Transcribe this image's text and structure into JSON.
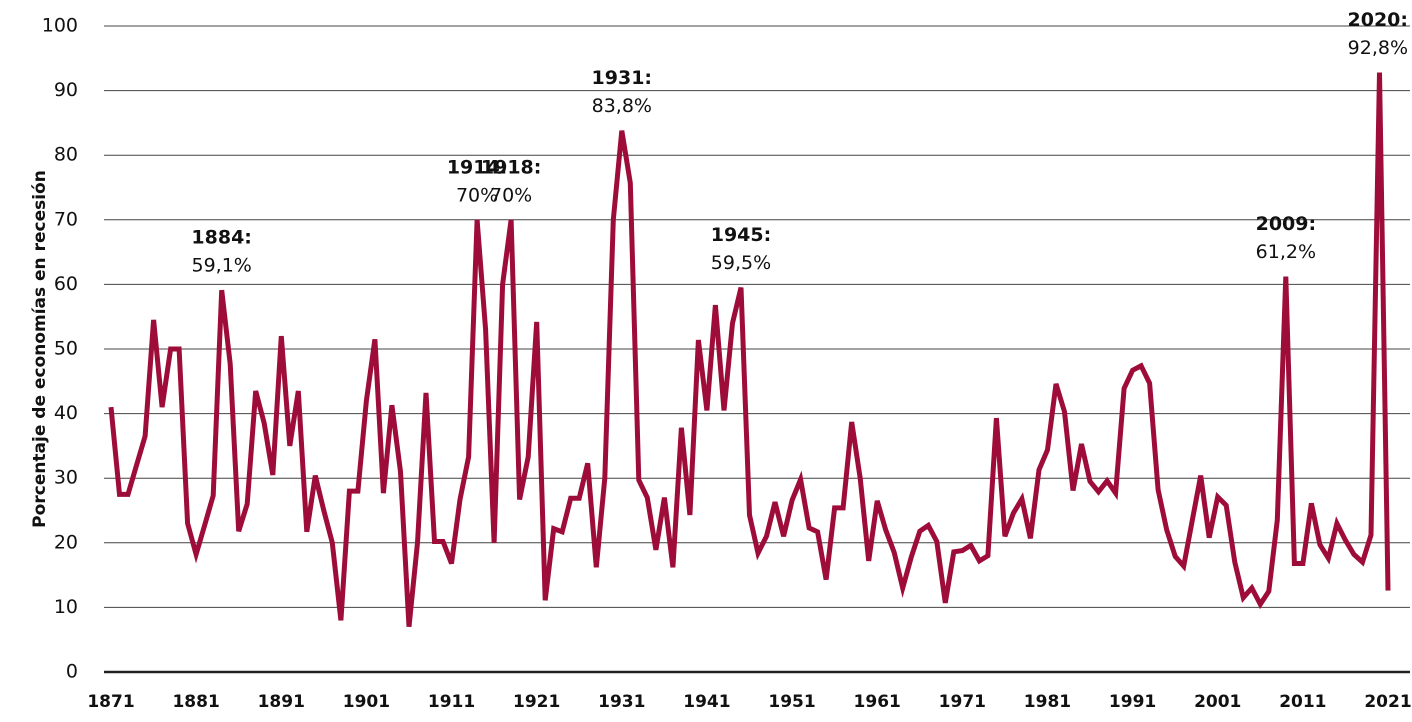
{
  "chart_data": {
    "type": "line",
    "y_label": "Porcentaje de economías en recesión",
    "x": [
      1871,
      1872,
      1873,
      1874,
      1875,
      1876,
      1877,
      1878,
      1879,
      1880,
      1881,
      1882,
      1883,
      1884,
      1885,
      1886,
      1887,
      1888,
      1889,
      1890,
      1891,
      1892,
      1893,
      1894,
      1895,
      1896,
      1897,
      1898,
      1899,
      1900,
      1901,
      1902,
      1903,
      1904,
      1905,
      1906,
      1907,
      1908,
      1909,
      1910,
      1911,
      1912,
      1913,
      1914,
      1915,
      1916,
      1917,
      1918,
      1919,
      1920,
      1921,
      1922,
      1923,
      1924,
      1925,
      1926,
      1927,
      1928,
      1929,
      1930,
      1931,
      1932,
      1933,
      1934,
      1935,
      1936,
      1937,
      1938,
      1939,
      1940,
      1941,
      1942,
      1943,
      1944,
      1945,
      1946,
      1947,
      1948,
      1949,
      1950,
      1951,
      1952,
      1953,
      1954,
      1955,
      1956,
      1957,
      1958,
      1959,
      1960,
      1961,
      1962,
      1963,
      1964,
      1965,
      1966,
      1967,
      1968,
      1969,
      1970,
      1971,
      1972,
      1973,
      1974,
      1975,
      1976,
      1977,
      1978,
      1979,
      1980,
      1981,
      1982,
      1983,
      1984,
      1985,
      1986,
      1987,
      1988,
      1989,
      1990,
      1991,
      1992,
      1993,
      1994,
      1995,
      1996,
      1997,
      1998,
      1999,
      2000,
      2001,
      2002,
      2003,
      2004,
      2005,
      2006,
      2007,
      2008,
      2009,
      2010,
      2011,
      2012,
      2013,
      2014,
      2015,
      2016,
      2017,
      2018,
      2019,
      2020,
      2021
    ],
    "series": [
      {
        "color": "#9e0d3a",
        "values": [
          41,
          27.5,
          27.5,
          32,
          36.5,
          54.5,
          41,
          50,
          50,
          23,
          18.2,
          22.7,
          27.3,
          59.1,
          47.7,
          21.8,
          26,
          43.5,
          38.5,
          30.5,
          52,
          35,
          43.5,
          21.7,
          30.4,
          25,
          20,
          8,
          28,
          28,
          42,
          51.5,
          27.7,
          41.3,
          31,
          7,
          20,
          43.2,
          20.2,
          20.2,
          16.8,
          26.7,
          33.3,
          70,
          53,
          20,
          60,
          70,
          26.7,
          33.3,
          54.2,
          11.1,
          22.2,
          21.7,
          26.9,
          26.9,
          32.3,
          16.2,
          30,
          70,
          83.8,
          75.7,
          29.7,
          27,
          18.9,
          27,
          16.2,
          37.8,
          24.3,
          51.4,
          40.5,
          56.8,
          40.5,
          54,
          59.5,
          24.3,
          18.4,
          21,
          26.3,
          21,
          26.6,
          29.8,
          22.3,
          21.7,
          14.3,
          25.4,
          25.4,
          38.7,
          30,
          17.2,
          26.5,
          22,
          18.5,
          13,
          17.8,
          21.8,
          22.7,
          20.2,
          10.7,
          18.6,
          18.8,
          19.6,
          17.2,
          18,
          39.3,
          21,
          24.6,
          26.8,
          20.7,
          31.3,
          34.4,
          44.6,
          40.3,
          28.1,
          35.3,
          29.5,
          27.9,
          29.6,
          27.7,
          43.9,
          46.7,
          47.4,
          44.7,
          28.2,
          22,
          17.9,
          16.4,
          23.4,
          30.4,
          20.8,
          27.1,
          25.8,
          17,
          11.5,
          13,
          10.5,
          12.5,
          23.5,
          61.2,
          16.8,
          16.8,
          26.1,
          19.7,
          17.6,
          23,
          20.4,
          18.2,
          17,
          21.2,
          92.8,
          12.6
        ]
      }
    ],
    "xlim": [
      1871,
      2021
    ],
    "xticks": [
      1871,
      1881,
      1891,
      1901,
      1911,
      1921,
      1931,
      1941,
      1951,
      1961,
      1971,
      1981,
      1991,
      2001,
      2011,
      2021
    ],
    "ylim": [
      0,
      100
    ],
    "yticks": [
      0,
      10,
      20,
      30,
      40,
      50,
      60,
      70,
      80,
      90,
      100
    ],
    "grid": true,
    "annotations": [
      {
        "x": 1884,
        "title": "1884:",
        "text": "59,1%"
      },
      {
        "x": 1914,
        "title": "1914:",
        "text": "70%"
      },
      {
        "x": 1918,
        "title": "1918:",
        "text": "70%"
      },
      {
        "x": 1931,
        "title": "1931:",
        "text": "83,8%"
      },
      {
        "x": 1945,
        "title": "1945:",
        "text": "59,5%"
      },
      {
        "x": 2009,
        "title": "2009:",
        "text": "61,2%"
      },
      {
        "x": 2020,
        "title": "2020:",
        "text": "92,8%"
      }
    ]
  }
}
